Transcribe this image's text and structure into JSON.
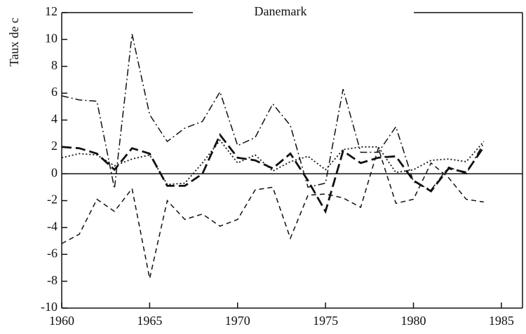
{
  "chart_data": {
    "type": "line",
    "title": "Danemark",
    "ylabel": "Taux de c",
    "x": [
      1960,
      1961,
      1962,
      1963,
      1964,
      1965,
      1966,
      1967,
      1968,
      1969,
      1970,
      1971,
      1972,
      1973,
      1974,
      1975,
      1976,
      1977,
      1978,
      1979,
      1980,
      1981,
      1982,
      1983,
      1984
    ],
    "series": [
      {
        "color": "#111111",
        "dash": "10 4 2 4",
        "linewidth": 1.5,
        "values": [
          5.8,
          5.5,
          5.4,
          -1.1,
          10.4,
          4.4,
          2.4,
          3.4,
          3.9,
          6.1,
          2.1,
          2.7,
          5.2,
          3.6,
          -1.0,
          -0.7,
          6.3,
          1.6,
          1.6,
          3.5,
          -0.6,
          -1.2,
          0.5,
          0.0,
          2.3
        ]
      },
      {
        "color": "#111111",
        "dash": "14 6",
        "linewidth": 2.8,
        "values": [
          2.0,
          1.9,
          1.5,
          0.3,
          1.9,
          1.5,
          -0.9,
          -0.9,
          0.0,
          2.9,
          1.2,
          1.0,
          0.4,
          1.5,
          -0.5,
          -2.8,
          1.7,
          0.8,
          1.2,
          1.3,
          -0.5,
          -1.3,
          0.4,
          0.1,
          2.0
        ]
      },
      {
        "color": "#111111",
        "dash": "2 3",
        "linewidth": 1.8,
        "values": [
          1.2,
          1.5,
          1.4,
          0.6,
          1.1,
          1.4,
          -0.8,
          -0.7,
          0.8,
          2.5,
          0.8,
          1.4,
          0.2,
          0.9,
          1.3,
          0.3,
          1.8,
          2.0,
          2.0,
          0.1,
          0.3,
          1.0,
          1.1,
          0.9,
          2.4
        ]
      },
      {
        "color": "#111111",
        "dash": "7 5",
        "linewidth": 1.5,
        "values": [
          -5.2,
          -4.5,
          -1.9,
          -2.8,
          -1.1,
          -7.8,
          -2.0,
          -3.4,
          -3.0,
          -3.9,
          -3.4,
          -1.2,
          -1.0,
          -4.8,
          -1.6,
          -1.5,
          -1.8,
          -2.5,
          1.9,
          -2.2,
          -1.9,
          0.8,
          -0.3,
          -1.9,
          -2.1
        ]
      }
    ],
    "hline": 0,
    "xlim": [
      1960,
      1986.2
    ],
    "xticks": [
      1960,
      1965,
      1970,
      1975,
      1980,
      1985
    ],
    "ylim": [
      -10,
      12
    ],
    "yticks": [
      -10,
      -8,
      -6,
      -4,
      -2,
      0,
      2,
      4,
      6,
      8,
      10,
      12
    ]
  }
}
